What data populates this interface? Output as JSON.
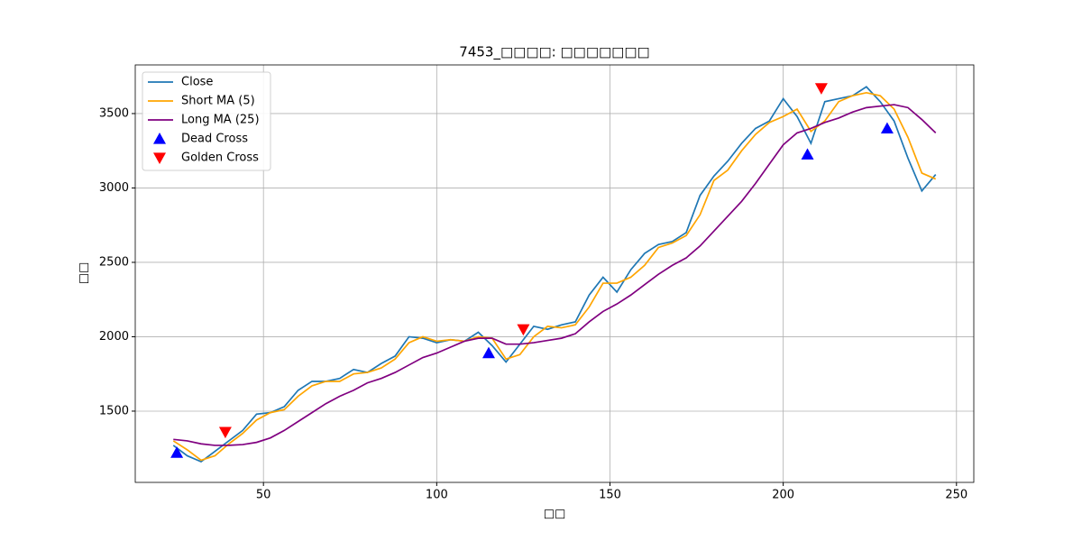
{
  "chart_data": {
    "type": "line",
    "title": "7453_□□□□: □□□□□□□",
    "x_label": "□□",
    "y_label": "□□",
    "xlim": [
      13,
      255
    ],
    "ylim": [
      1021,
      3827
    ],
    "xticks": [
      50,
      100,
      150,
      200,
      250
    ],
    "yticks": [
      1500,
      2000,
      2500,
      3000,
      3500
    ],
    "grid": true,
    "legend": "upper left",
    "x": [
      24,
      28,
      32,
      36,
      40,
      44,
      48,
      52,
      56,
      60,
      64,
      68,
      72,
      76,
      80,
      84,
      88,
      92,
      96,
      100,
      104,
      108,
      112,
      116,
      120,
      124,
      128,
      132,
      136,
      140,
      144,
      148,
      152,
      156,
      160,
      164,
      168,
      172,
      176,
      180,
      184,
      188,
      192,
      196,
      200,
      204,
      208,
      212,
      216,
      220,
      224,
      228,
      232,
      236,
      240,
      244
    ],
    "series": [
      {
        "name": "Close",
        "color": "#1f77b4",
        "values": [
          1270,
          1200,
          1160,
          1230,
          1300,
          1370,
          1480,
          1490,
          1530,
          1640,
          1700,
          1700,
          1720,
          1780,
          1760,
          1820,
          1870,
          2000,
          1990,
          1960,
          1980,
          1970,
          2030,
          1940,
          1830,
          1950,
          2070,
          2050,
          2080,
          2100,
          2280,
          2400,
          2300,
          2450,
          2560,
          2620,
          2640,
          2700,
          2950,
          3080,
          3180,
          3300,
          3400,
          3450,
          3600,
          3480,
          3300,
          3580,
          3600,
          3620,
          3680,
          3580,
          3450,
          3200,
          2980,
          3090
        ]
      },
      {
        "name": "Short MA (5)",
        "color": "#ffa500",
        "values": [
          1300,
          1240,
          1170,
          1200,
          1280,
          1350,
          1440,
          1490,
          1510,
          1600,
          1670,
          1700,
          1700,
          1750,
          1760,
          1790,
          1850,
          1960,
          2000,
          1970,
          1980,
          1970,
          2000,
          1990,
          1850,
          1880,
          2000,
          2070,
          2060,
          2080,
          2200,
          2360,
          2360,
          2400,
          2480,
          2600,
          2630,
          2680,
          2820,
          3050,
          3120,
          3250,
          3360,
          3440,
          3480,
          3530,
          3380,
          3450,
          3580,
          3620,
          3640,
          3620,
          3530,
          3340,
          3100,
          3060
        ]
      },
      {
        "name": "Long MA (25)",
        "color": "#800080",
        "values": [
          1310,
          1300,
          1280,
          1270,
          1270,
          1275,
          1290,
          1320,
          1370,
          1430,
          1490,
          1550,
          1600,
          1640,
          1690,
          1720,
          1760,
          1810,
          1860,
          1890,
          1930,
          1970,
          1990,
          1990,
          1950,
          1950,
          1960,
          1975,
          1990,
          2020,
          2100,
          2170,
          2220,
          2280,
          2350,
          2420,
          2480,
          2530,
          2610,
          2710,
          2810,
          2910,
          3030,
          3160,
          3290,
          3370,
          3400,
          3440,
          3470,
          3510,
          3540,
          3550,
          3560,
          3540,
          3460,
          3370
        ]
      }
    ],
    "markers": [
      {
        "name": "Dead Cross",
        "color": "#0000ff",
        "shape": "triangle-up",
        "x": [
          25,
          115,
          207,
          230
        ],
        "values": [
          1220,
          1890,
          3225,
          3400
        ]
      },
      {
        "name": "Golden Cross",
        "color": "#ff0000",
        "shape": "triangle-down",
        "x": [
          39,
          125,
          211
        ],
        "values": [
          1360,
          2050,
          3670
        ]
      }
    ]
  }
}
